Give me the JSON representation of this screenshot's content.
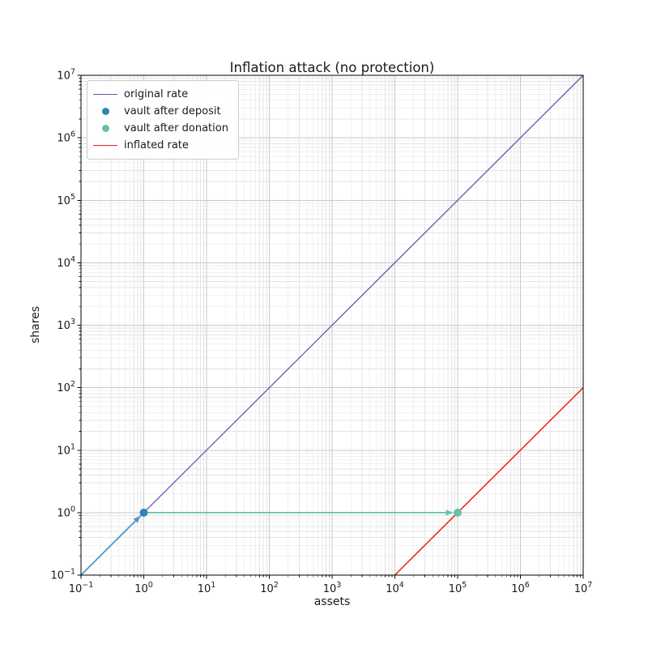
{
  "chart_data": {
    "type": "line",
    "title": "Inflation attack (no protection)",
    "xlabel": "assets",
    "ylabel": "shares",
    "xscale": "log",
    "yscale": "log",
    "xlim": [
      0.1,
      10000000
    ],
    "ylim": [
      0.1,
      10000000
    ],
    "x_tick_exponents": [
      -1,
      0,
      1,
      2,
      3,
      4,
      5,
      6,
      7
    ],
    "y_tick_exponents": [
      -1,
      0,
      1,
      2,
      3,
      4,
      5,
      6,
      7
    ],
    "grid": "both",
    "colors": {
      "grid_major": "#c9c9c9",
      "grid_minor": "#e4e4e4",
      "spine": "#000000",
      "text": "#1a1a1a"
    },
    "series": [
      {
        "name": "original rate",
        "kind": "line",
        "color": "#6456b4",
        "linewidth": 1.3,
        "points": [
          [
            0.1,
            0.1
          ],
          [
            10000000,
            10000000
          ]
        ]
      },
      {
        "name": "vault after deposit",
        "kind": "scatter",
        "color": "#2e86b8",
        "radius": 5,
        "points": [
          [
            1,
            1
          ]
        ]
      },
      {
        "name": "vault after donation",
        "kind": "scatter",
        "color": "#66c2a5",
        "radius": 5,
        "points": [
          [
            100000,
            1
          ]
        ]
      },
      {
        "name": "inflated rate",
        "kind": "line",
        "color": "#ee1c1c",
        "linewidth": 1.5,
        "points": [
          [
            10000,
            0.1
          ],
          [
            10000000,
            100
          ]
        ]
      }
    ],
    "arrows": [
      {
        "name": "deposit-arrow",
        "color": "#4a9bc9",
        "from": [
          0.1,
          0.1
        ],
        "to": [
          1,
          1
        ]
      },
      {
        "name": "donation-arrow",
        "color": "#66c2a5",
        "from": [
          1,
          1
        ],
        "to": [
          100000,
          1
        ]
      }
    ],
    "legend": {
      "position": "upper left",
      "entries": [
        {
          "label": "original rate",
          "swatch": "line",
          "color": "#6456b4"
        },
        {
          "label": "vault after deposit",
          "swatch": "dot",
          "color": "#2e86b8"
        },
        {
          "label": "vault after donation",
          "swatch": "dot",
          "color": "#66c2a5"
        },
        {
          "label": "inflated rate",
          "swatch": "line",
          "color": "#ee1c1c"
        }
      ]
    }
  }
}
